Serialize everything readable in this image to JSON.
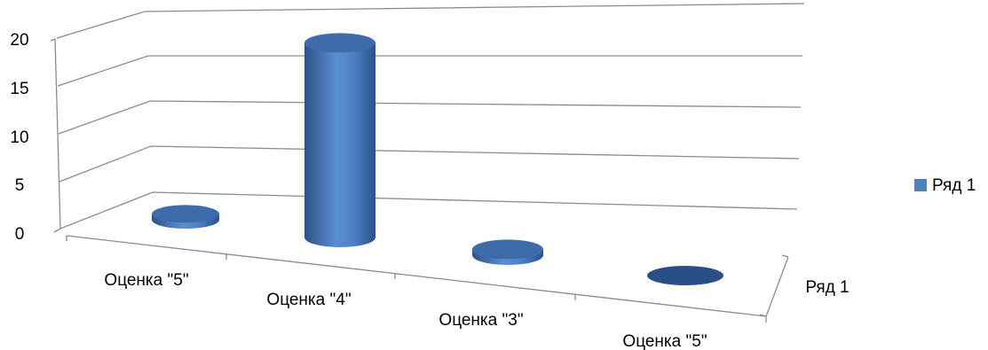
{
  "chart_data": {
    "type": "bar",
    "style": "3d-cylinder",
    "categories": [
      "Оценка \"5\"",
      "Оценка \"4\"",
      "Оценка \"3\"",
      "Оценка \"5\""
    ],
    "series": [
      {
        "name": "Ряд 1",
        "values": [
          3,
          18,
          3,
          0
        ]
      }
    ],
    "y_ticks": [
      "0",
      "5",
      "10",
      "15",
      "20"
    ],
    "ylim": [
      0,
      20
    ],
    "depth_axis_label": "Ряд 1",
    "grid": true,
    "legend": {
      "position": "right",
      "entries": [
        "Ряд 1"
      ]
    },
    "colors": {
      "series": "#4f81bd",
      "series_top": "#3e6cab",
      "series_dark": "#2a4f86"
    }
  }
}
